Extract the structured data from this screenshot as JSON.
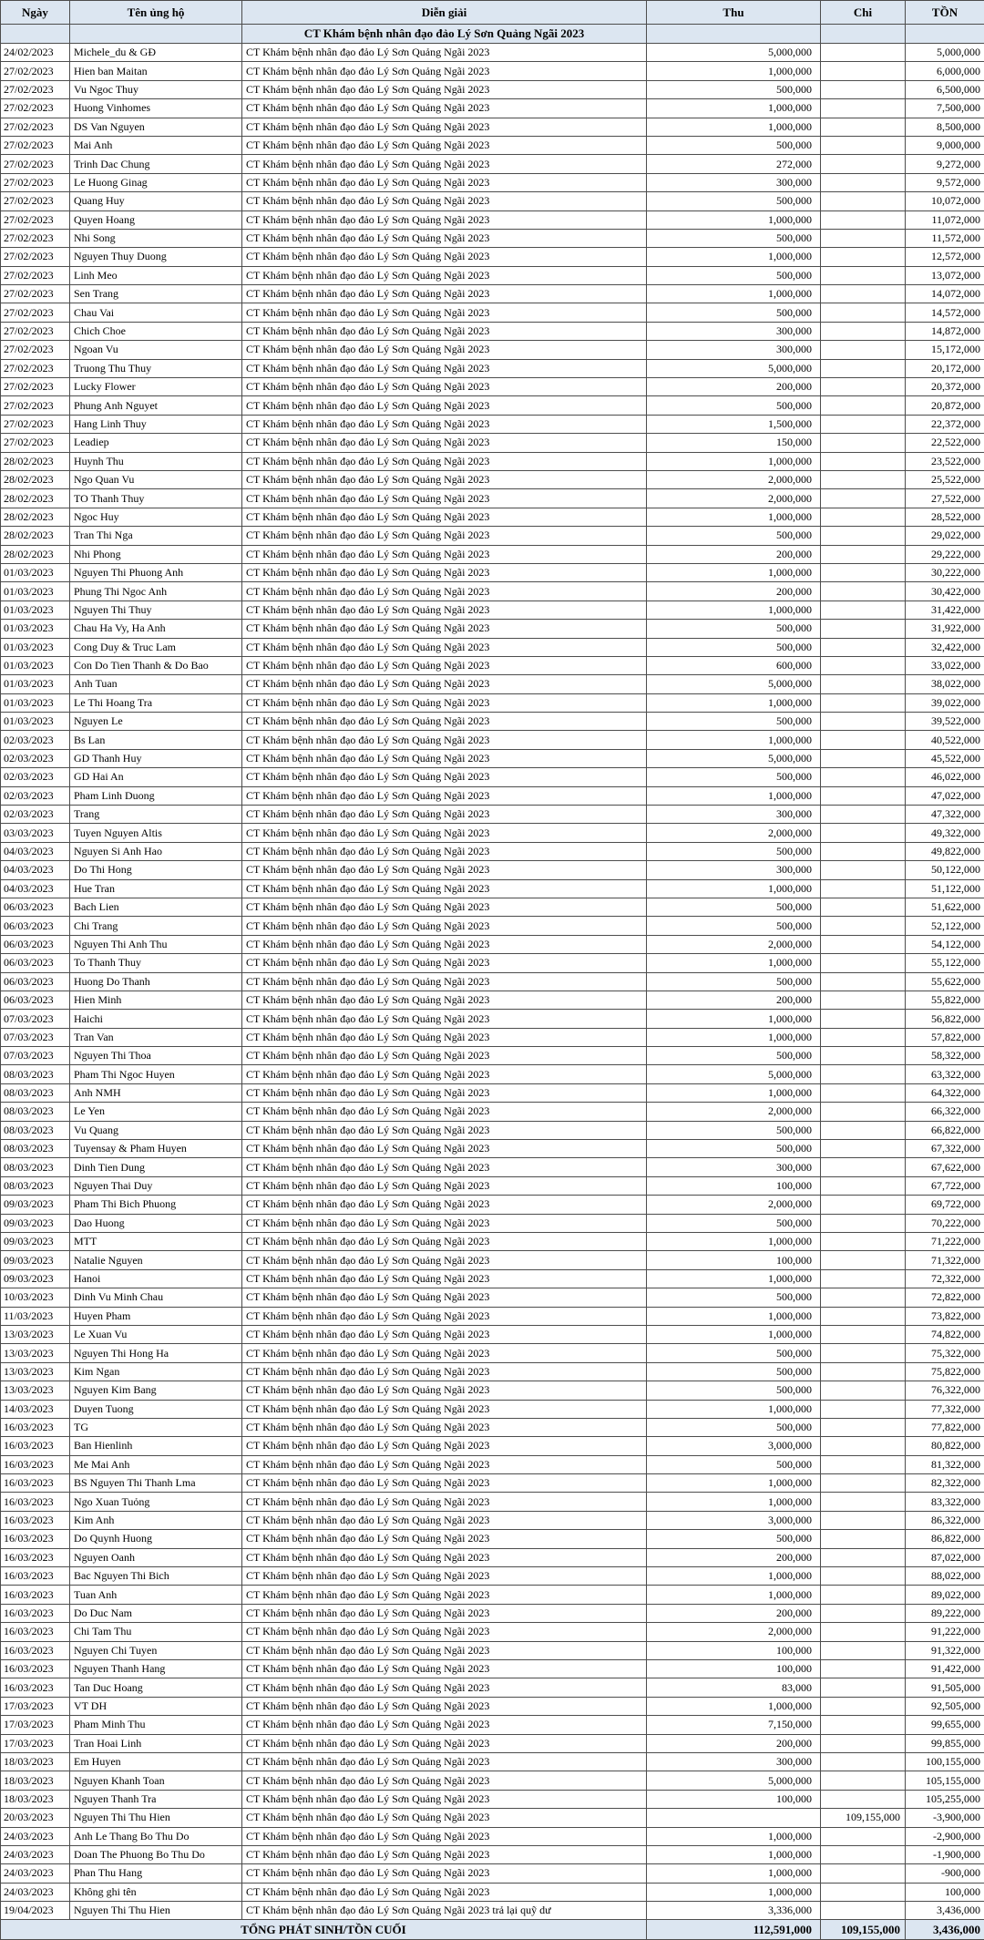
{
  "table": {
    "columns": [
      {
        "key": "date",
        "label": "Ngày"
      },
      {
        "key": "name",
        "label": "Tên ủng hộ"
      },
      {
        "key": "desc",
        "label": "Diễn giải"
      },
      {
        "key": "thu",
        "label": "Thu"
      },
      {
        "key": "chi",
        "label": "Chi"
      },
      {
        "key": "ton",
        "label": "TỒN"
      }
    ],
    "subheader": "CT Khám bệnh nhân đạo đảo Lý Sơn Quảng Ngãi 2023",
    "description_default": "CT Khám bệnh nhân đạo đảo Lý Sơn Quảng Ngãi 2023",
    "rows": [
      [
        "24/02/2023",
        "Michele_du & GĐ",
        "5,000,000",
        "",
        "5,000,000"
      ],
      [
        "27/02/2023",
        "Hien ban Maitan",
        "1,000,000",
        "",
        "6,000,000"
      ],
      [
        "27/02/2023",
        "Vu Ngoc Thuy",
        "500,000",
        "",
        "6,500,000"
      ],
      [
        "27/02/2023",
        "Huong Vinhomes",
        "1,000,000",
        "",
        "7,500,000"
      ],
      [
        "27/02/2023",
        "DS Van Nguyen",
        "1,000,000",
        "",
        "8,500,000"
      ],
      [
        "27/02/2023",
        "Mai Anh",
        "500,000",
        "",
        "9,000,000"
      ],
      [
        "27/02/2023",
        "Trinh Dac Chung",
        "272,000",
        "",
        "9,272,000"
      ],
      [
        "27/02/2023",
        "Le Huong Ginag",
        "300,000",
        "",
        "9,572,000"
      ],
      [
        "27/02/2023",
        "Quang Huy",
        "500,000",
        "",
        "10,072,000"
      ],
      [
        "27/02/2023",
        "Quyen Hoang",
        "1,000,000",
        "",
        "11,072,000"
      ],
      [
        "27/02/2023",
        "Nhi Song",
        "500,000",
        "",
        "11,572,000"
      ],
      [
        "27/02/2023",
        "Nguyen Thuy Duong",
        "1,000,000",
        "",
        "12,572,000"
      ],
      [
        "27/02/2023",
        "Linh Meo",
        "500,000",
        "",
        "13,072,000"
      ],
      [
        "27/02/2023",
        "Sen Trang",
        "1,000,000",
        "",
        "14,072,000"
      ],
      [
        "27/02/2023",
        "Chau Vai",
        "500,000",
        "",
        "14,572,000"
      ],
      [
        "27/02/2023",
        "Chich Choe",
        "300,000",
        "",
        "14,872,000"
      ],
      [
        "27/02/2023",
        "Ngoan Vu",
        "300,000",
        "",
        "15,172,000"
      ],
      [
        "27/02/2023",
        "Truong Thu Thuy",
        "5,000,000",
        "",
        "20,172,000"
      ],
      [
        "27/02/2023",
        "Lucky Flower",
        "200,000",
        "",
        "20,372,000"
      ],
      [
        "27/02/2023",
        "Phung Anh Nguyet",
        "500,000",
        "",
        "20,872,000"
      ],
      [
        "27/02/2023",
        "Hang Linh Thuy",
        "1,500,000",
        "",
        "22,372,000"
      ],
      [
        "27/02/2023",
        "Leadiep",
        "150,000",
        "",
        "22,522,000"
      ],
      [
        "28/02/2023",
        "Huynh Thu",
        "1,000,000",
        "",
        "23,522,000"
      ],
      [
        "28/02/2023",
        "Ngo Quan Vu",
        "2,000,000",
        "",
        "25,522,000"
      ],
      [
        "28/02/2023",
        "TO Thanh Thuy",
        "2,000,000",
        "",
        "27,522,000"
      ],
      [
        "28/02/2023",
        "Ngoc Huy",
        "1,000,000",
        "",
        "28,522,000"
      ],
      [
        "28/02/2023",
        "Tran Thi Nga",
        "500,000",
        "",
        "29,022,000"
      ],
      [
        "28/02/2023",
        "Nhi Phong",
        "200,000",
        "",
        "29,222,000"
      ],
      [
        "01/03/2023",
        "Nguyen Thi Phuong Anh",
        "1,000,000",
        "",
        "30,222,000"
      ],
      [
        "01/03/2023",
        "Phung Thi Ngoc Anh",
        "200,000",
        "",
        "30,422,000"
      ],
      [
        "01/03/2023",
        "Nguyen Thi Thuy",
        "1,000,000",
        "",
        "31,422,000"
      ],
      [
        "01/03/2023",
        "Chau Ha Vy, Ha Anh",
        "500,000",
        "",
        "31,922,000"
      ],
      [
        "01/03/2023",
        "Cong Duy & Truc Lam",
        "500,000",
        "",
        "32,422,000"
      ],
      [
        "01/03/2023",
        "Con Do Tien Thanh & Do Bao",
        "600,000",
        "",
        "33,022,000"
      ],
      [
        "01/03/2023",
        "Anh Tuan",
        "5,000,000",
        "",
        "38,022,000"
      ],
      [
        "01/03/2023",
        "Le Thi Hoang Tra",
        "1,000,000",
        "",
        "39,022,000"
      ],
      [
        "01/03/2023",
        "Nguyen Le",
        "500,000",
        "",
        "39,522,000"
      ],
      [
        "02/03/2023",
        "Bs Lan",
        "1,000,000",
        "",
        "40,522,000"
      ],
      [
        "02/03/2023",
        "GD Thanh Huy",
        "5,000,000",
        "",
        "45,522,000"
      ],
      [
        "02/03/2023",
        "GD Hai An",
        "500,000",
        "",
        "46,022,000"
      ],
      [
        "02/03/2023",
        "Pham Linh Duong",
        "1,000,000",
        "",
        "47,022,000"
      ],
      [
        "02/03/2023",
        "Trang",
        "300,000",
        "",
        "47,322,000"
      ],
      [
        "03/03/2023",
        "Tuyen Nguyen Altis",
        "2,000,000",
        "",
        "49,322,000"
      ],
      [
        "04/03/2023",
        "Nguyen Si Anh Hao",
        "500,000",
        "",
        "49,822,000"
      ],
      [
        "04/03/2023",
        "Do Thi Hong",
        "300,000",
        "",
        "50,122,000"
      ],
      [
        "04/03/2023",
        "Hue Tran",
        "1,000,000",
        "",
        "51,122,000"
      ],
      [
        "06/03/2023",
        "Bach Lien",
        "500,000",
        "",
        "51,622,000"
      ],
      [
        "06/03/2023",
        "Chi Trang",
        "500,000",
        "",
        "52,122,000"
      ],
      [
        "06/03/2023",
        "Nguyen Thi Anh Thu",
        "2,000,000",
        "",
        "54,122,000"
      ],
      [
        "06/03/2023",
        "To Thanh Thuy",
        "1,000,000",
        "",
        "55,122,000"
      ],
      [
        "06/03/2023",
        "Huong Do Thanh",
        "500,000",
        "",
        "55,622,000"
      ],
      [
        "06/03/2023",
        "Hien Minh",
        "200,000",
        "",
        "55,822,000"
      ],
      [
        "07/03/2023",
        "Haichi",
        "1,000,000",
        "",
        "56,822,000"
      ],
      [
        "07/03/2023",
        "Tran Van",
        "1,000,000",
        "",
        "57,822,000"
      ],
      [
        "07/03/2023",
        "Nguyen Thi Thoa",
        "500,000",
        "",
        "58,322,000"
      ],
      [
        "08/03/2023",
        "Pham Thi Ngoc Huyen",
        "5,000,000",
        "",
        "63,322,000"
      ],
      [
        "08/03/2023",
        "Anh NMH",
        "1,000,000",
        "",
        "64,322,000"
      ],
      [
        "08/03/2023",
        "Le Yen",
        "2,000,000",
        "",
        "66,322,000"
      ],
      [
        "08/03/2023",
        "Vu Quang",
        "500,000",
        "",
        "66,822,000"
      ],
      [
        "08/03/2023",
        "Tuyensay & Pham Huyen",
        "500,000",
        "",
        "67,322,000"
      ],
      [
        "08/03/2023",
        "Dinh Tien Dung",
        "300,000",
        "",
        "67,622,000"
      ],
      [
        "08/03/2023",
        "Nguyen Thai Duy",
        "100,000",
        "",
        "67,722,000"
      ],
      [
        "09/03/2023",
        "Pham Thi Bich Phuong",
        "2,000,000",
        "",
        "69,722,000"
      ],
      [
        "09/03/2023",
        "Dao Huong",
        "500,000",
        "",
        "70,222,000"
      ],
      [
        "09/03/2023",
        "MTT",
        "1,000,000",
        "",
        "71,222,000"
      ],
      [
        "09/03/2023",
        "Natalie Nguyen",
        "100,000",
        "",
        "71,322,000"
      ],
      [
        "09/03/2023",
        "Hanoi",
        "1,000,000",
        "",
        "72,322,000"
      ],
      [
        "10/03/2023",
        "Dinh Vu Minh Chau",
        "500,000",
        "",
        "72,822,000"
      ],
      [
        "11/03/2023",
        "Huyen Pham",
        "1,000,000",
        "",
        "73,822,000"
      ],
      [
        "13/03/2023",
        "Le Xuan Vu",
        "1,000,000",
        "",
        "74,822,000"
      ],
      [
        "13/03/2023",
        "Nguyen Thi Hong Ha",
        "500,000",
        "",
        "75,322,000"
      ],
      [
        "13/03/2023",
        "Kim Ngan",
        "500,000",
        "",
        "75,822,000"
      ],
      [
        "13/03/2023",
        "Nguyen Kim Bang",
        "500,000",
        "",
        "76,322,000"
      ],
      [
        "14/03/2023",
        "Duyen Tuong",
        "1,000,000",
        "",
        "77,322,000"
      ],
      [
        "16/03/2023",
        "TG",
        "500,000",
        "",
        "77,822,000"
      ],
      [
        "16/03/2023",
        "Ban Hienlinh",
        "3,000,000",
        "",
        "80,822,000"
      ],
      [
        "16/03/2023",
        "Me Mai Anh",
        "500,000",
        "",
        "81,322,000"
      ],
      [
        "16/03/2023",
        "BS Nguyen Thi Thanh Lma",
        "1,000,000",
        "",
        "82,322,000"
      ],
      [
        "16/03/2023",
        "Ngo Xuan Tuỏng",
        "1,000,000",
        "",
        "83,322,000"
      ],
      [
        "16/03/2023",
        "Kim Anh",
        "3,000,000",
        "",
        "86,322,000"
      ],
      [
        "16/03/2023",
        "Do Quynh Huong",
        "500,000",
        "",
        "86,822,000"
      ],
      [
        "16/03/2023",
        "Nguyen Oanh",
        "200,000",
        "",
        "87,022,000"
      ],
      [
        "16/03/2023",
        "Bac Nguyen Thi Bich",
        "1,000,000",
        "",
        "88,022,000"
      ],
      [
        "16/03/2023",
        "Tuan Anh",
        "1,000,000",
        "",
        "89,022,000"
      ],
      [
        "16/03/2023",
        "Do Duc Nam",
        "200,000",
        "",
        "89,222,000"
      ],
      [
        "16/03/2023",
        "Chi Tam Thu",
        "2,000,000",
        "",
        "91,222,000"
      ],
      [
        "16/03/2023",
        "Nguyen Chi Tuyen",
        "100,000",
        "",
        "91,322,000"
      ],
      [
        "16/03/2023",
        "Nguyen Thanh Hang",
        "100,000",
        "",
        "91,422,000"
      ],
      [
        "16/03/2023",
        "Tan Duc Hoang",
        "83,000",
        "",
        "91,505,000"
      ],
      [
        "17/03/2023",
        "VT DH",
        "1,000,000",
        "",
        "92,505,000"
      ],
      [
        "17/03/2023",
        "Pham Minh Thu",
        "7,150,000",
        "",
        "99,655,000"
      ],
      [
        "17/03/2023",
        "Tran Hoai Linh",
        "200,000",
        "",
        "99,855,000"
      ],
      [
        "18/03/2023",
        "Em Huyen",
        "300,000",
        "",
        "100,155,000"
      ],
      [
        "18/03/2023",
        "Nguyen Khanh Toan",
        "5,000,000",
        "",
        "105,155,000"
      ],
      [
        "18/03/2023",
        "Nguyen Thanh Tra",
        "100,000",
        "",
        "105,255,000"
      ],
      [
        "20/03/2023",
        "Nguyen Thi Thu Hien",
        "",
        "109,155,000",
        "-3,900,000"
      ],
      [
        "24/03/2023",
        "Anh Le Thang Bo Thu Do",
        "1,000,000",
        "",
        "-2,900,000"
      ],
      [
        "24/03/2023",
        "Doan The Phuong Bo Thu Do",
        "1,000,000",
        "",
        "-1,900,000"
      ],
      [
        "24/03/2023",
        "Phan Thu Hang",
        "1,000,000",
        "",
        "-900,000"
      ],
      [
        "24/03/2023",
        "Không ghi tên",
        "1,000,000",
        "",
        "100,000"
      ],
      [
        "19/04/2023",
        "Nguyen Thi Thu Hien",
        "3,336,000",
        "",
        "3,436,000",
        "CT Khám bệnh nhân đạo đảo Lý Sơn Quảng Ngãi 2023 trả lại quỹ dư"
      ]
    ],
    "total": {
      "label": "TỔNG PHÁT SINH/TỒN CUỐI",
      "thu": "112,591,000",
      "chi": "109,155,000",
      "ton": "3,436,000"
    }
  },
  "colors": {
    "header_bg": "#dce6f1",
    "row_bg": "#ffffff",
    "border": "#4d4d4d",
    "text": "#000000"
  }
}
